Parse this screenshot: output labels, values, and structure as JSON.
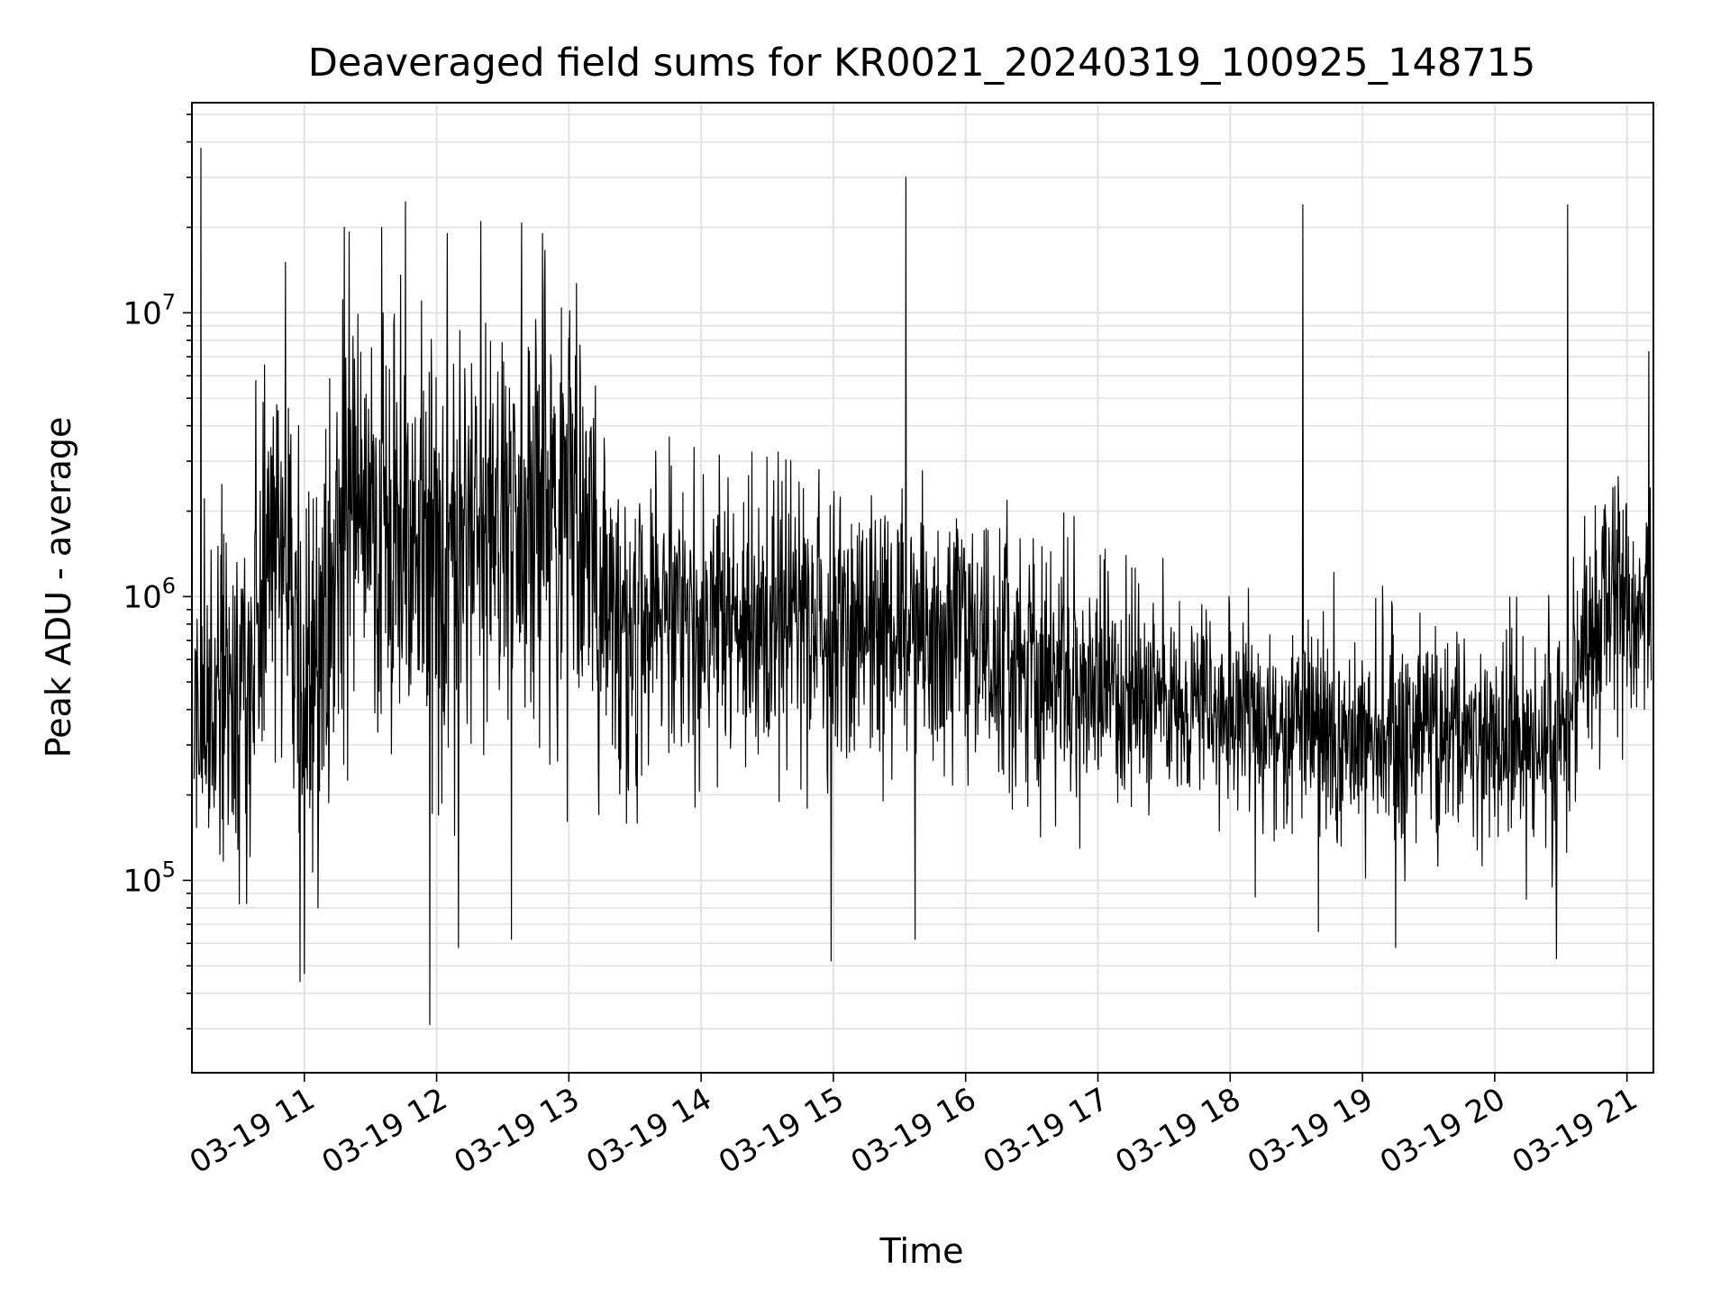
{
  "chart_data": {
    "type": "line",
    "title": "Deaveraged field sums for KR0021_20240319_100925_148715",
    "xlabel": "Time",
    "ylabel": "Peak ADU - average",
    "yscale": "log",
    "xlim": [
      "2024-03-19T10:09",
      "2024-03-19T21:12"
    ],
    "ylim": [
      21000,
      55000000
    ],
    "grid": true,
    "x_ticks": [
      {
        "t": "2024-03-19T11:00",
        "label": "03-19 11"
      },
      {
        "t": "2024-03-19T12:00",
        "label": "03-19 12"
      },
      {
        "t": "2024-03-19T13:00",
        "label": "03-19 13"
      },
      {
        "t": "2024-03-19T14:00",
        "label": "03-19 14"
      },
      {
        "t": "2024-03-19T15:00",
        "label": "03-19 15"
      },
      {
        "t": "2024-03-19T16:00",
        "label": "03-19 16"
      },
      {
        "t": "2024-03-19T17:00",
        "label": "03-19 17"
      },
      {
        "t": "2024-03-19T18:00",
        "label": "03-19 18"
      },
      {
        "t": "2024-03-19T19:00",
        "label": "03-19 19"
      },
      {
        "t": "2024-03-19T20:00",
        "label": "03-19 20"
      },
      {
        "t": "2024-03-19T21:00",
        "label": "03-19 21"
      }
    ],
    "y_ticks": [
      {
        "v": 100000,
        "base": "10",
        "exp": "5"
      },
      {
        "v": 1000000,
        "base": "10",
        "exp": "6"
      },
      {
        "v": 10000000,
        "base": "10",
        "exp": "7"
      }
    ],
    "series": [
      {
        "color": "#000000",
        "approximate_envelope": [
          {
            "t": "2024-03-19T10:10",
            "median": 400000,
            "spread_decades": 0.55
          },
          {
            "t": "2024-03-19T10:30",
            "median": 500000,
            "spread_decades": 0.6
          },
          {
            "t": "2024-03-19T10:50",
            "median": 1500000,
            "spread_decades": 0.75
          },
          {
            "t": "2024-03-19T11:00",
            "median": 500000,
            "spread_decades": 0.8
          },
          {
            "t": "2024-03-19T11:20",
            "median": 2000000,
            "spread_decades": 0.75
          },
          {
            "t": "2024-03-19T11:40",
            "median": 1800000,
            "spread_decades": 0.75
          },
          {
            "t": "2024-03-19T12:00",
            "median": 1200000,
            "spread_decades": 0.8
          },
          {
            "t": "2024-03-19T12:20",
            "median": 2200000,
            "spread_decades": 0.75
          },
          {
            "t": "2024-03-19T12:40",
            "median": 1700000,
            "spread_decades": 0.7
          },
          {
            "t": "2024-03-19T13:00",
            "median": 1900000,
            "spread_decades": 0.7
          },
          {
            "t": "2024-03-19T13:20",
            "median": 1000000,
            "spread_decades": 0.55
          },
          {
            "t": "2024-03-19T14:00",
            "median": 750000,
            "spread_decades": 0.5
          },
          {
            "t": "2024-03-19T15:00",
            "median": 850000,
            "spread_decades": 0.5
          },
          {
            "t": "2024-03-19T16:00",
            "median": 650000,
            "spread_decades": 0.45
          },
          {
            "t": "2024-03-19T17:00",
            "median": 520000,
            "spread_decades": 0.42
          },
          {
            "t": "2024-03-19T18:00",
            "median": 380000,
            "spread_decades": 0.38
          },
          {
            "t": "2024-03-19T19:00",
            "median": 330000,
            "spread_decades": 0.38
          },
          {
            "t": "2024-03-19T20:00",
            "median": 320000,
            "spread_decades": 0.38
          },
          {
            "t": "2024-03-19T20:30",
            "median": 330000,
            "spread_decades": 0.4
          },
          {
            "t": "2024-03-19T20:50",
            "median": 950000,
            "spread_decades": 0.45
          },
          {
            "t": "2024-03-19T21:12",
            "median": 850000,
            "spread_decades": 0.4
          }
        ],
        "spikes": [
          {
            "t": "2024-03-19T10:13",
            "value": 38000000
          },
          {
            "t": "2024-03-19T11:18",
            "value": 20000000
          },
          {
            "t": "2024-03-19T11:35",
            "value": 20000000
          },
          {
            "t": "2024-03-19T12:20",
            "value": 21000000
          },
          {
            "t": "2024-03-19T12:48",
            "value": 19000000
          },
          {
            "t": "2024-03-19T15:33",
            "value": 30000000
          },
          {
            "t": "2024-03-19T18:33",
            "value": 24000000
          },
          {
            "t": "2024-03-19T20:33",
            "value": 24000000
          },
          {
            "t": "2024-03-19T21:10",
            "value": 7300000
          }
        ],
        "dips": [
          {
            "t": "2024-03-19T10:58",
            "value": 44000
          },
          {
            "t": "2024-03-19T11:00",
            "value": 47000
          },
          {
            "t": "2024-03-19T11:57",
            "value": 31000
          },
          {
            "t": "2024-03-19T12:10",
            "value": 58000
          },
          {
            "t": "2024-03-19T12:34",
            "value": 62000
          },
          {
            "t": "2024-03-19T14:59",
            "value": 52000
          },
          {
            "t": "2024-03-19T15:37",
            "value": 62000
          },
          {
            "t": "2024-03-19T18:40",
            "value": 66000
          },
          {
            "t": "2024-03-19T19:15",
            "value": 58000
          },
          {
            "t": "2024-03-19T20:28",
            "value": 53000
          }
        ]
      }
    ]
  }
}
